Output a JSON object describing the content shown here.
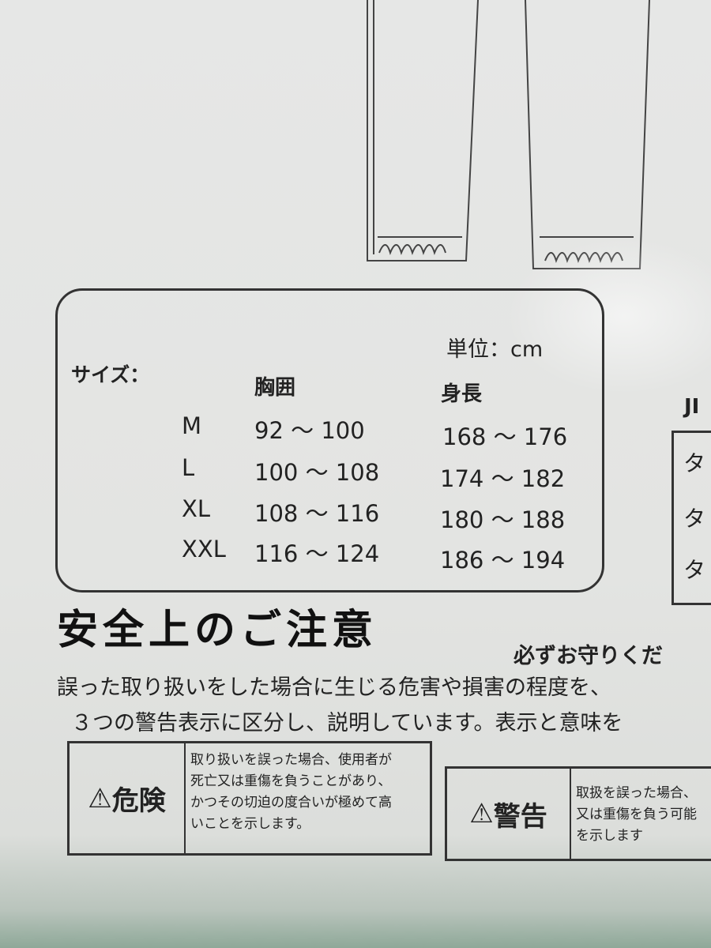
{
  "size_chart": {
    "unit": "単位：cm",
    "size_label": "サイズ：",
    "headers": [
      "胸囲",
      "身長"
    ],
    "rows": [
      {
        "size": "M",
        "chest": "92 ～ 100",
        "height": "168 ～ 176"
      },
      {
        "size": "L",
        "chest": "100 ～ 108",
        "height": "174 ～ 182"
      },
      {
        "size": "XL",
        "chest": "108 ～ 116",
        "height": "180 ～ 188"
      },
      {
        "size": "XXL",
        "chest": "116 ～ 124",
        "height": "186 ～ 194"
      }
    ]
  },
  "jis": {
    "label": "JI",
    "rows": [
      "タ",
      "タ",
      "タ"
    ]
  },
  "safety": {
    "heading": "安全上のご注意",
    "subheading": "必ずお守りくだ",
    "intro_lines": [
      "誤った取り扱いをした場合に生じる危害や損害の程度を、",
      "３つの警告表示に区分し、説明しています。表示と意味を"
    ],
    "warnings": [
      {
        "icon": "warning-triangle-icon",
        "label": "危険",
        "lines": [
          "取り扱いを誤った場合、使用者が",
          "死亡又は重傷を負うことがあり、",
          "かつその切迫の度合いが極めて高",
          "いことを示します。"
        ]
      },
      {
        "icon": "warning-triangle-icon",
        "label": "警告",
        "lines": [
          "取扱を誤った場合、",
          "又は重傷を負う可能",
          "を示します"
        ]
      }
    ]
  }
}
